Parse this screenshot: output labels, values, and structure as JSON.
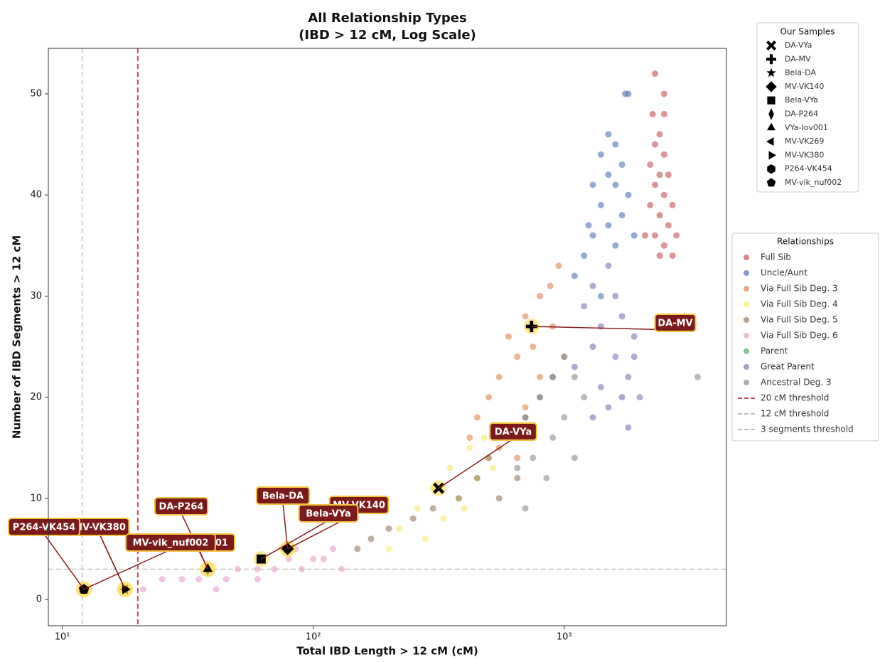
{
  "chart_data": {
    "type": "scatter",
    "title": "All Relationship Types",
    "subtitle": "(IBD > 12 cM, Log Scale)",
    "xlabel": "Total IBD Length > 12 cM (cM)",
    "ylabel": "Number of IBD Segments > 12 cM",
    "xscale": "log",
    "xlim": [
      8.8,
      4430
    ],
    "ylim": [
      -2.6,
      54.5
    ],
    "xticks": [
      {
        "value": 10,
        "label": "10¹"
      },
      {
        "value": 100,
        "label": "10²"
      },
      {
        "value": 1000,
        "label": "10³"
      }
    ],
    "yticks": [
      0,
      10,
      20,
      30,
      40,
      50
    ],
    "legend_title": "Relationships",
    "samples_legend_title": "Our Samples",
    "series": [
      {
        "name": "Full Sib",
        "color": "#c44e52",
        "x": [
          2300,
          2500,
          2250,
          2500,
          2400,
          2300,
          2500,
          2200,
          2400,
          2600,
          2300,
          2500,
          2200,
          2700,
          2400,
          2600,
          2100,
          2300,
          2800,
          2500,
          2700,
          2400
        ],
        "y": [
          52,
          50,
          48,
          48,
          46,
          45,
          44,
          43,
          42,
          42,
          41,
          40,
          39,
          39,
          38,
          37,
          36,
          36,
          36,
          35,
          34,
          34
        ]
      },
      {
        "name": "Uncle/Aunt",
        "color": "#4c72b0",
        "x": [
          1750,
          1800,
          1500,
          1600,
          1400,
          1700,
          1500,
          1300,
          1600,
          1800,
          1400,
          1700,
          1250,
          1500,
          1900,
          1300,
          1600,
          1200,
          1100,
          1400
        ],
        "y": [
          50,
          50,
          46,
          45,
          44,
          43,
          42,
          41,
          41,
          40,
          39,
          38,
          37,
          37,
          36,
          36,
          35,
          34,
          32,
          30
        ]
      },
      {
        "name": "Via Full Sib Deg. 3",
        "color": "#dd8452",
        "x": [
          950,
          880,
          800,
          700,
          900,
          600,
          750,
          650,
          550,
          800,
          500,
          700,
          450,
          600,
          420,
          550,
          650,
          1000
        ],
        "y": [
          33,
          31,
          30,
          28,
          27,
          26,
          25,
          24,
          22,
          22,
          20,
          19,
          18,
          17,
          16,
          15,
          14,
          24
        ]
      },
      {
        "name": "Via Full Sib Deg. 4",
        "color": "#f7ea6a",
        "x": [
          550,
          480,
          420,
          500,
          350,
          450,
          300,
          380,
          260,
          330,
          220,
          280,
          200,
          400,
          520
        ],
        "y": [
          17,
          16,
          15,
          14,
          13,
          12,
          11,
          10,
          9,
          8,
          7,
          6,
          5,
          9,
          13
        ]
      },
      {
        "name": "Via Full Sib Deg. 5",
        "color": "#937860",
        "x": [
          900,
          800,
          700,
          600,
          500,
          450,
          380,
          300,
          250,
          200,
          170,
          150,
          650,
          550
        ],
        "y": [
          22,
          20,
          18,
          16,
          14,
          12,
          10,
          9,
          8,
          7,
          6,
          5,
          12,
          10
        ]
      },
      {
        "name": "Via Full Sib Deg. 6",
        "color": "#e59fc9",
        "x": [
          17,
          21,
          25,
          30,
          35,
          41,
          45,
          50,
          60,
          70,
          80,
          90,
          100,
          110,
          130,
          120,
          60,
          85
        ],
        "y": [
          1,
          1,
          2,
          2,
          2,
          1,
          2,
          3,
          3,
          3,
          4,
          3,
          4,
          4,
          3,
          5,
          2,
          5
        ]
      },
      {
        "name": "Parent",
        "color": "#55a868",
        "x": [],
        "y": []
      },
      {
        "name": "Great Parent",
        "color": "#8172b3",
        "x": [
          1500,
          1300,
          1600,
          1200,
          1700,
          1400,
          1900,
          1300,
          1600,
          1100,
          1800,
          1400,
          1700,
          1500,
          1300,
          1800,
          2000,
          1900
        ],
        "y": [
          33,
          31,
          30,
          29,
          28,
          27,
          26,
          25,
          24,
          23,
          22,
          21,
          20,
          19,
          18,
          17,
          20,
          24
        ]
      },
      {
        "name": "Ancestral Deg. 3",
        "color": "#8c8c8c",
        "x": [
          1000,
          900,
          1100,
          800,
          1200,
          700,
          1000,
          600,
          900,
          1100,
          750,
          650,
          700,
          850,
          3400
        ],
        "y": [
          24,
          22,
          22,
          20,
          20,
          18,
          18,
          16,
          16,
          14,
          14,
          13,
          9,
          12,
          22
        ]
      }
    ],
    "thresholds": [
      {
        "name": "20 cM threshold",
        "axis": "x",
        "value": 20,
        "color": "#c44e52"
      },
      {
        "name": "12 cM threshold",
        "axis": "x",
        "value": 12,
        "color": "#bbbbbb"
      },
      {
        "name": "3 segments threshold",
        "axis": "y",
        "value": 3,
        "color": "#bbbbbb"
      }
    ],
    "samples": [
      {
        "name": "DA-VYa",
        "marker": "X",
        "x": 316,
        "y": 11
      },
      {
        "name": "DA-MV",
        "marker": "P",
        "x": 741,
        "y": 27
      },
      {
        "name": "Bela-DA",
        "marker": "*",
        "x": 79,
        "y": 5
      },
      {
        "name": "MV-VK140",
        "marker": "D",
        "x": 79,
        "y": 5
      },
      {
        "name": "Bela-VYa",
        "marker": "s",
        "x": 62,
        "y": 4
      },
      {
        "name": "DA-P264",
        "marker": "d",
        "x": 38,
        "y": 3
      },
      {
        "name": "VYa-Iov001",
        "marker": "^",
        "x": 38,
        "y": 3
      },
      {
        "name": "MV-VK269",
        "marker": "<",
        "x": 17.8,
        "y": 1
      },
      {
        "name": "MV-VK380",
        "marker": ">",
        "x": 17.8,
        "y": 1
      },
      {
        "name": "P264-VK454",
        "marker": "h",
        "x": 12.2,
        "y": 1
      },
      {
        "name": "MV-vik_nuf002",
        "marker": "p",
        "x": 12.2,
        "y": 1
      }
    ]
  }
}
